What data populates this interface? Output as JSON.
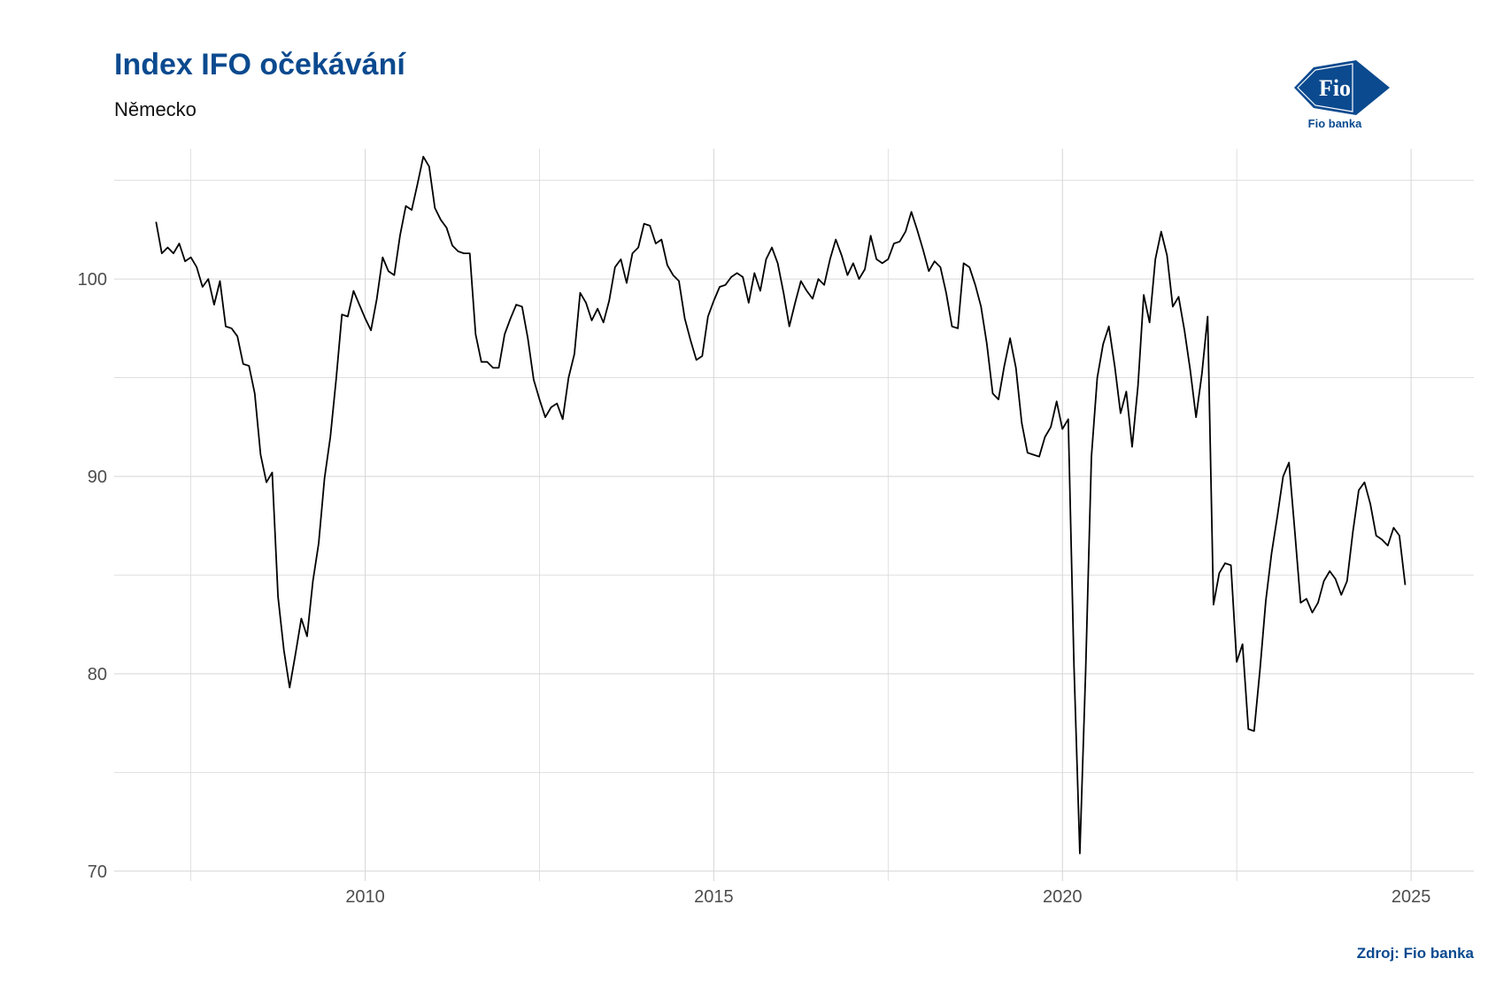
{
  "header": {
    "title": "Index IFO očekávání",
    "subtitle": "Německo"
  },
  "logo": {
    "mark_text": "Fio",
    "caption": "Fio banka",
    "color": "#0b4a8f"
  },
  "footer": {
    "source": "Zdroj: Fio banka"
  },
  "chart_data": {
    "type": "line",
    "title": "Index IFO očekávání",
    "subtitle": "Německo",
    "xlabel": "",
    "ylabel": "",
    "xlim": [
      2006.4,
      2025.9
    ],
    "ylim": [
      69.5,
      106.6
    ],
    "x_ticks": [
      2010,
      2015,
      2020,
      2025
    ],
    "x_tick_labels": [
      "2010",
      "2015",
      "2020",
      "2025"
    ],
    "y_ticks": [
      70,
      80,
      90,
      100
    ],
    "y_tick_labels": [
      "70",
      "80",
      "90",
      "100"
    ],
    "grid": true,
    "line_color": "#000000",
    "series": [
      {
        "x_start": 2007.0,
        "x_step": 0.08333,
        "values": [
          102.9,
          101.3,
          101.6,
          101.3,
          101.8,
          100.9,
          101.1,
          100.6,
          99.6,
          100.0,
          98.7,
          99.9,
          97.6,
          97.5,
          97.1,
          95.7,
          95.6,
          94.2,
          91.1,
          89.7,
          90.2,
          83.9,
          81.2,
          79.3,
          81.0,
          82.8,
          81.9,
          84.7,
          86.6,
          89.9,
          92.0,
          94.9,
          98.2,
          98.1,
          99.4,
          98.7,
          98.0,
          97.4,
          99.0,
          101.1,
          100.4,
          100.2,
          102.2,
          103.7,
          103.5,
          104.8,
          106.2,
          105.7,
          103.6,
          103.0,
          102.6,
          101.7,
          101.4,
          101.3,
          101.3,
          97.2,
          95.8,
          95.8,
          95.5,
          95.5,
          97.2,
          98.0,
          98.7,
          98.6,
          97.0,
          94.9,
          93.9,
          93.0,
          93.5,
          93.7,
          92.9,
          95.0,
          96.2,
          99.3,
          98.8,
          97.9,
          98.5,
          97.8,
          98.9,
          100.6,
          101.0,
          99.8,
          101.3,
          101.6,
          102.8,
          102.7,
          101.8,
          102.0,
          100.7,
          100.2,
          99.9,
          98.0,
          96.9,
          95.9,
          96.1,
          98.1,
          98.9,
          99.6,
          99.7,
          100.1,
          100.3,
          100.1,
          98.8,
          100.3,
          99.4,
          101.0,
          101.6,
          100.8,
          99.3,
          97.6,
          98.8,
          99.9,
          99.4,
          99.0,
          100.0,
          99.7,
          101.0,
          102.0,
          101.2,
          100.2,
          100.8,
          100.0,
          100.5,
          102.2,
          101.0,
          100.8,
          101.0,
          101.8,
          101.9,
          102.4,
          103.4,
          102.5,
          101.5,
          100.4,
          100.9,
          100.6,
          99.3,
          97.6,
          97.5,
          100.8,
          100.6,
          99.7,
          98.6,
          96.7,
          94.2,
          93.9,
          95.6,
          97.0,
          95.5,
          92.7,
          91.2,
          91.1,
          91.0,
          92.0,
          92.5,
          93.8,
          92.4,
          92.9,
          80.4,
          70.9,
          80.2,
          91.0,
          95.0,
          96.7,
          97.6,
          95.6,
          93.2,
          94.3,
          91.5,
          94.6,
          99.2,
          97.8,
          101.0,
          102.4,
          101.2,
          98.6,
          99.1,
          97.4,
          95.4,
          93.0,
          95.2,
          98.1,
          83.5,
          85.1,
          85.6,
          85.5,
          80.6,
          81.5,
          77.2,
          77.1,
          80.2,
          83.7,
          86.1,
          88.0,
          90.0,
          90.7,
          87.2,
          83.6,
          83.8,
          83.1,
          83.6,
          84.7,
          85.2,
          84.8,
          84.0,
          84.7,
          87.2,
          89.3,
          89.7,
          88.6,
          87.0,
          86.8,
          86.5,
          87.4,
          87.0,
          84.5
        ]
      }
    ]
  }
}
